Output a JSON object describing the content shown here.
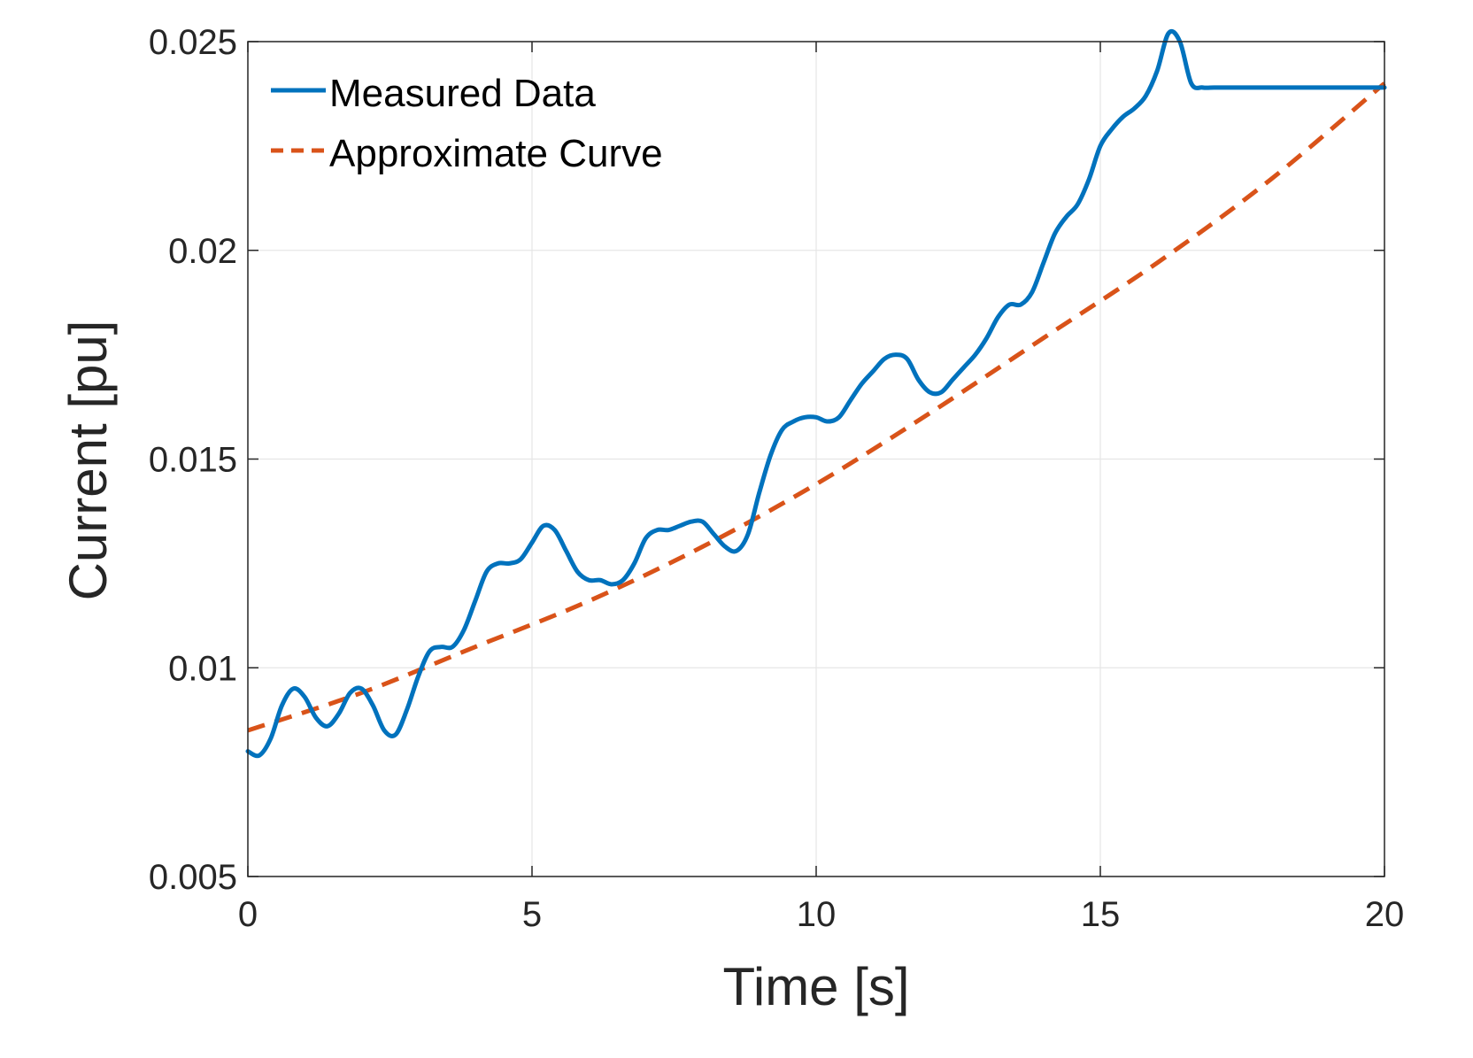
{
  "chart_data": {
    "type": "line",
    "title": "",
    "xlabel": "Time [s]",
    "ylabel": "Current [pu]",
    "xlim": [
      0,
      20
    ],
    "ylim": [
      0.005,
      0.025
    ],
    "xticks": [
      0,
      5,
      10,
      15,
      20
    ],
    "xtick_labels": [
      "0",
      "5",
      "10",
      "15",
      "20"
    ],
    "yticks": [
      0.005,
      0.01,
      0.015,
      0.02,
      0.025
    ],
    "ytick_labels": [
      "0.005",
      "0.01",
      "0.015",
      "0.02",
      "0.025"
    ],
    "grid": true,
    "legend_position": "top-left",
    "series": [
      {
        "name": "Measured Data",
        "color": "#0072BD",
        "style": "solid",
        "x": [
          0,
          0.2,
          0.4,
          0.6,
          0.8,
          1.0,
          1.2,
          1.4,
          1.6,
          1.8,
          2.0,
          2.2,
          2.4,
          2.6,
          2.8,
          3.0,
          3.2,
          3.4,
          3.6,
          3.8,
          4.0,
          4.2,
          4.4,
          4.6,
          4.8,
          5.0,
          5.2,
          5.4,
          5.6,
          5.8,
          6.0,
          6.2,
          6.4,
          6.6,
          6.8,
          7.0,
          7.2,
          7.4,
          7.6,
          7.8,
          8.0,
          8.2,
          8.4,
          8.6,
          8.8,
          9.0,
          9.2,
          9.4,
          9.6,
          9.8,
          10.0,
          10.2,
          10.4,
          10.6,
          10.8,
          11.0,
          11.2,
          11.4,
          11.6,
          11.8,
          12.0,
          12.2,
          12.4,
          12.6,
          12.8,
          13.0,
          13.2,
          13.4,
          13.6,
          13.8,
          14.0,
          14.2,
          14.4,
          14.6,
          14.8,
          15.0,
          15.2,
          15.4,
          15.6,
          15.8,
          16.0,
          16.2,
          16.4,
          16.6,
          16.8,
          17.0,
          17.2,
          17.4,
          17.6,
          17.8,
          18.0,
          18.2,
          18.4,
          18.6,
          18.8,
          19.0,
          19.2,
          19.4,
          19.6,
          19.8,
          20.0
        ],
        "values": [
          0.008,
          0.0079,
          0.0083,
          0.0091,
          0.0095,
          0.0093,
          0.0088,
          0.0086,
          0.0089,
          0.0094,
          0.0095,
          0.0091,
          0.0085,
          0.0084,
          0.009,
          0.0098,
          0.0104,
          0.0105,
          0.0105,
          0.0109,
          0.0116,
          0.0123,
          0.0125,
          0.0125,
          0.0126,
          0.013,
          0.0134,
          0.0133,
          0.0128,
          0.0123,
          0.0121,
          0.0121,
          0.012,
          0.0121,
          0.0125,
          0.0131,
          0.0133,
          0.0133,
          0.0134,
          0.0135,
          0.0135,
          0.0132,
          0.0129,
          0.0128,
          0.0132,
          0.0142,
          0.0151,
          0.0157,
          0.0159,
          0.016,
          0.016,
          0.0159,
          0.016,
          0.0164,
          0.0168,
          0.0171,
          0.0174,
          0.0175,
          0.0174,
          0.0169,
          0.0166,
          0.0166,
          0.0169,
          0.0172,
          0.0175,
          0.0179,
          0.0184,
          0.0187,
          0.0187,
          0.019,
          0.0197,
          0.0204,
          0.0208,
          0.0211,
          0.0217,
          0.0225,
          0.0229,
          0.0232,
          0.0234,
          0.0237,
          0.0243,
          0.0252,
          0.025,
          0.024,
          0.0239,
          0.0239,
          0.0239,
          0.0239,
          0.0239,
          0.0239,
          0.0239,
          0.0239,
          0.0239,
          0.0239,
          0.0239,
          0.0239,
          0.0239,
          0.0239,
          0.0239,
          0.0239,
          0.0239
        ]
      },
      {
        "name": "Approximate Curve",
        "color": "#D95319",
        "style": "dashed",
        "x": [
          0,
          2,
          4,
          6,
          8,
          10,
          12,
          14,
          16,
          18,
          20
        ],
        "values": [
          0.0085,
          0.0094,
          0.0105,
          0.0116,
          0.0129,
          0.0144,
          0.0161,
          0.0179,
          0.0197,
          0.0217,
          0.024
        ]
      }
    ]
  }
}
